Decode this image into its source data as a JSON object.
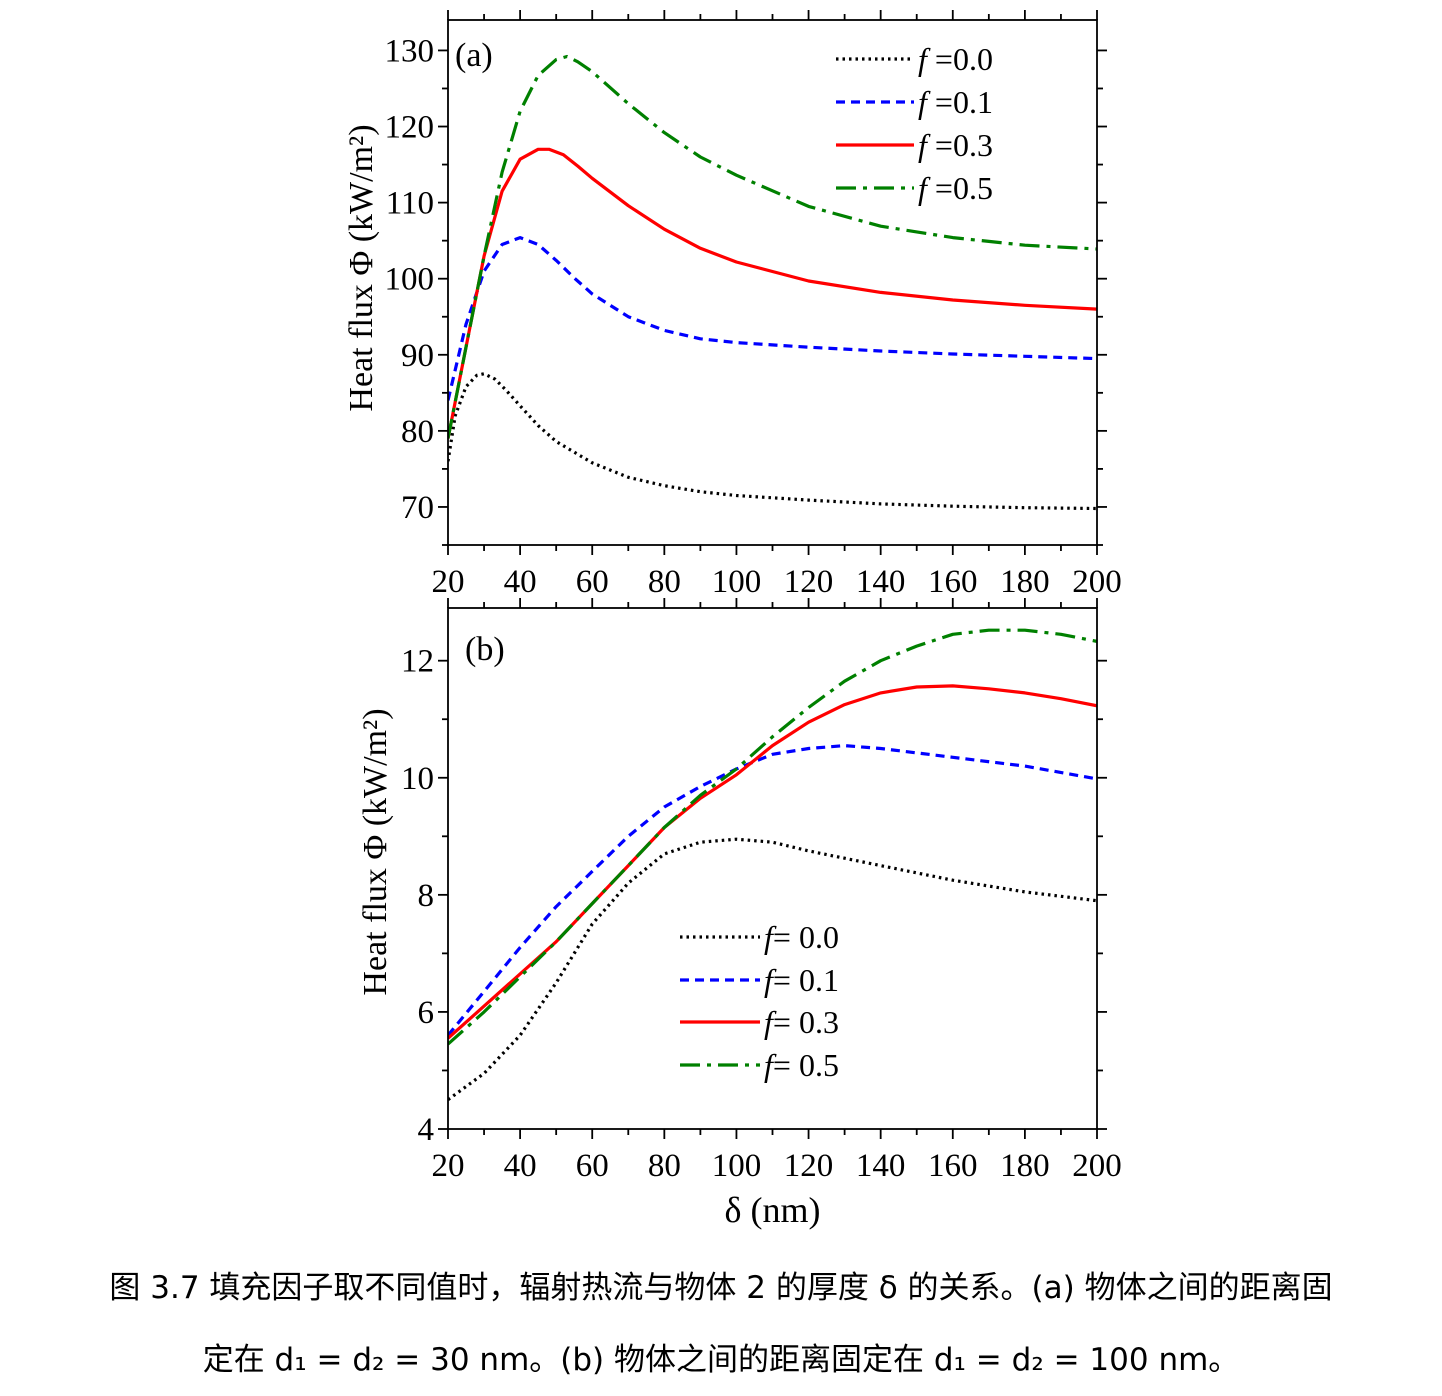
{
  "colors": {
    "f0.0": "#000000",
    "f0.1": "#0000ff",
    "f0.3": "#ff0000",
    "f0.5": "#008000"
  },
  "chart_data": [
    {
      "type": "line",
      "panel_label": "(a)",
      "xlabel": "",
      "ylabel": "Heat flux Φ (kW/m²)",
      "xlim": [
        20,
        200
      ],
      "ylim": [
        65,
        134
      ],
      "x_ticks": [
        20,
        40,
        60,
        80,
        100,
        120,
        140,
        160,
        180,
        200
      ],
      "y_ticks": [
        70,
        80,
        90,
        100,
        110,
        120,
        130
      ],
      "legend_position": "top-right",
      "series": [
        {
          "name": "f =0.0",
          "style": "dotted",
          "color_key": "f0.0",
          "x": [
            20,
            22,
            25,
            28,
            30,
            33,
            36,
            40,
            45,
            50,
            60,
            70,
            80,
            90,
            100,
            120,
            140,
            160,
            180,
            200
          ],
          "y": [
            76,
            82,
            85.8,
            87.3,
            87.5,
            86.8,
            85.4,
            83.3,
            80.7,
            78.6,
            75.8,
            73.9,
            72.8,
            72.0,
            71.5,
            70.9,
            70.4,
            70.1,
            69.9,
            69.8
          ]
        },
        {
          "name": "f =0.1",
          "style": "dashed",
          "color_key": "f0.1",
          "x": [
            20,
            25,
            30,
            35,
            40,
            45,
            50,
            55,
            60,
            70,
            80,
            90,
            100,
            120,
            140,
            160,
            180,
            200
          ],
          "y": [
            84,
            94,
            101,
            104.5,
            105.4,
            104.5,
            102.4,
            100.1,
            98.0,
            95.0,
            93.2,
            92.1,
            91.6,
            91.0,
            90.5,
            90.1,
            89.8,
            89.5
          ]
        },
        {
          "name": "f =0.3",
          "style": "solid",
          "color_key": "f0.3",
          "x": [
            20,
            25,
            30,
            35,
            40,
            45,
            48,
            52,
            56,
            60,
            70,
            80,
            90,
            100,
            120,
            140,
            160,
            180,
            200
          ],
          "y": [
            79,
            91,
            103,
            111.5,
            115.7,
            117,
            117,
            116.3,
            114.8,
            113.2,
            109.6,
            106.5,
            104.0,
            102.2,
            99.7,
            98.2,
            97.2,
            96.5,
            96.0
          ]
        },
        {
          "name": "f =0.5",
          "style": "dashdot",
          "color_key": "f0.5",
          "x": [
            20,
            25,
            30,
            35,
            40,
            45,
            50,
            53,
            56,
            60,
            70,
            80,
            90,
            100,
            120,
            140,
            160,
            180,
            200
          ],
          "y": [
            79,
            91,
            103,
            114,
            122,
            126.7,
            128.8,
            129.2,
            128.5,
            127.2,
            123.0,
            119.2,
            116.0,
            113.6,
            109.5,
            106.9,
            105.4,
            104.4,
            103.9
          ]
        }
      ]
    },
    {
      "type": "line",
      "panel_label": "(b)",
      "xlabel": "δ (nm)",
      "ylabel": "Heat flux Φ (kW/m²)",
      "xlim": [
        20,
        200
      ],
      "ylim": [
        4,
        12.9
      ],
      "x_ticks": [
        20,
        40,
        60,
        80,
        100,
        120,
        140,
        160,
        180,
        200
      ],
      "y_ticks": [
        4,
        6,
        8,
        10,
        12
      ],
      "legend_position": "bottom-center",
      "series": [
        {
          "name": "f= 0.0",
          "style": "dotted",
          "color_key": "f0.0",
          "x": [
            20,
            30,
            40,
            50,
            60,
            70,
            80,
            90,
            100,
            110,
            120,
            140,
            160,
            180,
            200
          ],
          "y": [
            4.5,
            4.95,
            5.6,
            6.5,
            7.5,
            8.2,
            8.7,
            8.9,
            8.95,
            8.9,
            8.75,
            8.5,
            8.25,
            8.05,
            7.9
          ]
        },
        {
          "name": "f= 0.1",
          "style": "dashed",
          "color_key": "f0.1",
          "x": [
            20,
            30,
            40,
            50,
            60,
            70,
            80,
            90,
            100,
            110,
            120,
            130,
            140,
            160,
            180,
            200
          ],
          "y": [
            5.6,
            6.35,
            7.1,
            7.8,
            8.4,
            9.0,
            9.5,
            9.85,
            10.15,
            10.4,
            10.5,
            10.55,
            10.5,
            10.35,
            10.2,
            9.98
          ]
        },
        {
          "name": "f= 0.3",
          "style": "solid",
          "color_key": "f0.3",
          "x": [
            20,
            30,
            40,
            50,
            60,
            70,
            80,
            90,
            100,
            110,
            120,
            130,
            140,
            150,
            160,
            170,
            180,
            190,
            200
          ],
          "y": [
            5.55,
            6.1,
            6.65,
            7.2,
            7.85,
            8.5,
            9.15,
            9.65,
            10.05,
            10.55,
            10.95,
            11.25,
            11.45,
            11.55,
            11.57,
            11.52,
            11.45,
            11.35,
            11.23
          ]
        },
        {
          "name": "f= 0.5",
          "style": "dashdot",
          "color_key": "f0.5",
          "x": [
            20,
            30,
            40,
            50,
            60,
            70,
            80,
            90,
            100,
            110,
            120,
            130,
            140,
            150,
            160,
            170,
            180,
            190,
            200
          ],
          "y": [
            5.45,
            6.0,
            6.6,
            7.2,
            7.85,
            8.5,
            9.15,
            9.7,
            10.15,
            10.7,
            11.2,
            11.65,
            12.0,
            12.25,
            12.45,
            12.52,
            12.52,
            12.45,
            12.33
          ]
        }
      ]
    }
  ],
  "caption": {
    "line1": "图 3.7 填充因子取不同值时，辐射热流与物体 2 的厚度 δ 的关系。(a) 物体之间的距离固",
    "line2": "定在 d₁ = d₂ = 30 nm。(b) 物体之间的距离固定在 d₁ = d₂ = 100 nm。"
  }
}
